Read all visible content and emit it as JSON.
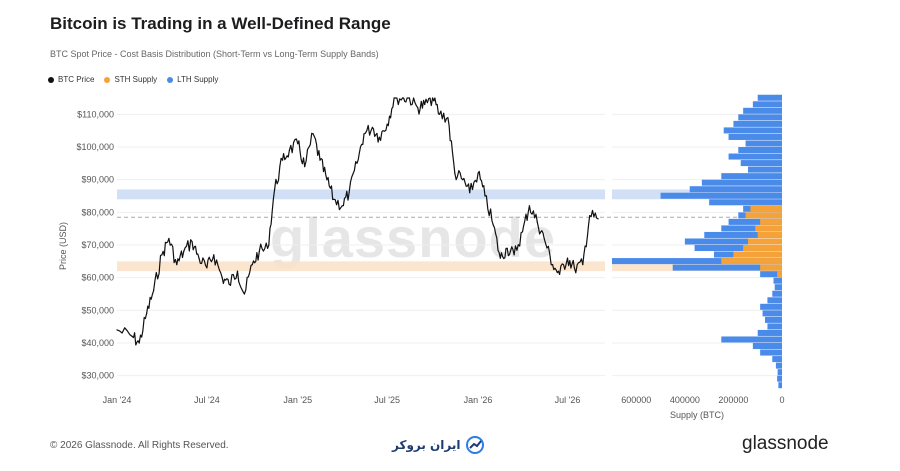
{
  "title": "Bitcoin is Trading in a Well-Defined Range",
  "subtitle": "BTC Spot Price - Cost Basis Distribution (Short-Term vs Long-Term Supply Bands)",
  "legend": [
    {
      "label": "BTC Price",
      "color": "#111111"
    },
    {
      "label": "STH Supply",
      "color": "#f5a238"
    },
    {
      "label": "LTH Supply",
      "color": "#4a8bea"
    }
  ],
  "watermark": "glassnode",
  "footer": {
    "copyright": "© 2026 Glassnode. All Rights Reserved.",
    "partner": "ایران بروکر",
    "brand": "glassnode"
  },
  "chart_data": [
    {
      "type": "line",
      "title": "",
      "xlabel": "",
      "ylabel": "Price (USD)",
      "ylim": [
        25000,
        115000
      ],
      "yticks": [
        "$30,000",
        "$40,000",
        "$50,000",
        "$60,000",
        "$70,000",
        "$80,000",
        "$90,000",
        "$100,000",
        "$110,000"
      ],
      "xticks": [
        "Jan '24",
        "Jul '24",
        "Jan '25",
        "Jul '25",
        "Jan '26",
        "Jul '26"
      ],
      "series": [
        {
          "name": "BTC Price",
          "color": "#111111",
          "x": [
            "2024-01",
            "2024-02",
            "2024-02-15",
            "2024-03",
            "2024-03-15",
            "2024-04",
            "2024-04-15",
            "2024-05",
            "2024-05-15",
            "2024-06",
            "2024-06-15",
            "2024-07",
            "2024-07-15",
            "2024-08",
            "2024-08-15",
            "2024-09",
            "2024-09-15",
            "2024-10",
            "2024-10-15",
            "2024-11",
            "2024-11-15",
            "2024-12",
            "2024-12-15",
            "2025-01",
            "2025-01-15",
            "2025-02",
            "2025-02-15",
            "2025-03",
            "2025-03-15",
            "2025-04",
            "2025-04-15",
            "2025-05",
            "2025-05-15",
            "2025-06",
            "2025-06-15",
            "2025-07",
            "2025-07-15",
            "2025-08",
            "2025-08-15",
            "2025-09",
            "2025-09-15",
            "2025-10",
            "2025-10-15",
            "2025-11",
            "2025-11-15",
            "2025-12",
            "2025-12-15",
            "2026-01",
            "2026-01-15",
            "2026-02",
            "2026-02-15",
            "2026-03",
            "2026-03-15",
            "2026-04",
            "2026-04-15",
            "2026-05",
            "2026-05-15",
            "2026-06",
            "2026-06-15",
            "2026-07",
            "2026-07-15",
            "2026-08",
            "2026-08-15",
            "2026-09"
          ],
          "y": [
            44000,
            42000,
            40000,
            49000,
            56000,
            67000,
            72000,
            64000,
            68000,
            71000,
            66000,
            63000,
            67000,
            60000,
            58000,
            62000,
            55000,
            64000,
            68000,
            69000,
            87000,
            96000,
            99000,
            101000,
            94000,
            104000,
            96000,
            90000,
            84000,
            82000,
            86000,
            95000,
            104000,
            106000,
            103000,
            107000,
            119000,
            118000,
            116000,
            112000,
            113000,
            117000,
            110000,
            109000,
            92000,
            90000,
            86000,
            92000,
            85000,
            76000,
            66000,
            69000,
            67000,
            74000,
            82000,
            77000,
            72000,
            64000,
            61000,
            66000,
            63000,
            64000,
            79000,
            78000
          ]
        },
        {
          "name": "",
          "type": "range-band",
          "bands": [
            {
              "label": "",
              "ymin": 84000,
              "ymax": 87000,
              "color": "#c9daf6"
            },
            {
              "label": "",
              "ymin": 62000,
              "ymax": 65000,
              "color": "#fbe1c7"
            }
          ],
          "reference_line": 78500
        }
      ]
    },
    {
      "type": "bar",
      "title": "",
      "xlabel": "Supply (BTC)",
      "ylabel": "",
      "orientation": "horizontal",
      "xlim": [
        700000,
        0
      ],
      "xticks": [
        "600000",
        "400000",
        "200000",
        "0"
      ],
      "ylim": [
        25000,
        115000
      ],
      "series": [
        {
          "name": "LTH Supply",
          "color": "#4a8bea",
          "price_levels": [
            27000,
            29000,
            31000,
            33000,
            35000,
            37000,
            39000,
            41000,
            43000,
            45000,
            47000,
            49000,
            51000,
            53000,
            55000,
            57000,
            59000,
            61000,
            63000,
            65000,
            67000,
            69000,
            71000,
            73000,
            75000,
            77000,
            79000,
            81000,
            83000,
            85000,
            87000,
            89000,
            91000,
            93000,
            95000,
            97000,
            99000,
            101000,
            103000,
            105000,
            107000,
            109000,
            111000,
            113000,
            115000
          ],
          "values": [
            15000,
            20000,
            18000,
            25000,
            40000,
            90000,
            120000,
            250000,
            100000,
            60000,
            70000,
            80000,
            90000,
            60000,
            40000,
            30000,
            35000,
            90000,
            450000,
            700000,
            280000,
            360000,
            400000,
            320000,
            250000,
            220000,
            180000,
            160000,
            300000,
            500000,
            380000,
            330000,
            250000,
            140000,
            170000,
            220000,
            180000,
            150000,
            220000,
            240000,
            200000,
            180000,
            160000,
            120000,
            100000
          ]
        },
        {
          "name": "STH Supply",
          "color": "#f5a238",
          "price_levels": [
            61000,
            63000,
            65000,
            67000,
            69000,
            71000,
            73000,
            75000,
            77000,
            79000,
            81000
          ],
          "values": [
            20000,
            90000,
            250000,
            200000,
            160000,
            140000,
            100000,
            110000,
            90000,
            150000,
            130000
          ]
        }
      ]
    }
  ]
}
